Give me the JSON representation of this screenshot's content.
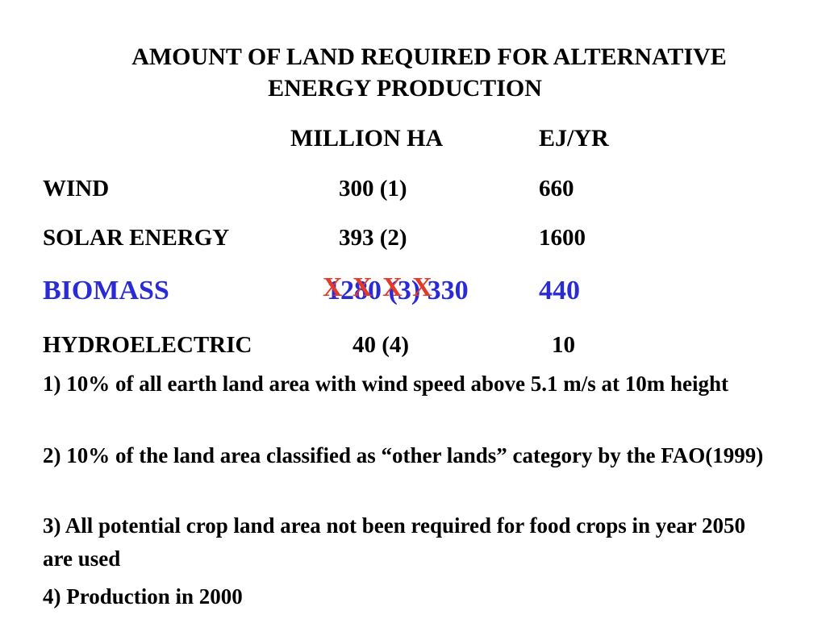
{
  "title": {
    "line1": "AMOUNT OF LAND REQUIRED FOR ALTERNATIVE",
    "line2": "ENERGY PRODUCTION"
  },
  "headers": {
    "col1": "MILLION HA",
    "col2": "EJ/YR"
  },
  "rows": [
    {
      "name": "WIND",
      "ha": "300 (1)",
      "ej": "660"
    },
    {
      "name": "SOLAR ENERGY",
      "ha": "393 (2)",
      "ej": "1600"
    },
    {
      "name": "BIOMASS",
      "ha": "1280 (3) 330",
      "ej": "440",
      "strike_marks": "X X X X"
    },
    {
      "name": "HYDROELECTRIC",
      "ha": "40 (4)",
      "ej": "10"
    }
  ],
  "notes": [
    "1) 10% of all earth land area with wind speed above 5.1 m/s at 10m height",
    "2) 10% of the land area classified as “other lands” category by the FAO(1999)",
    "3) All potential crop land area not been required for food crops in year 2050 are used",
    "4) Production in 2000"
  ],
  "colors": {
    "biomass": "#2b2bd6",
    "strike": "#e23b2a"
  }
}
